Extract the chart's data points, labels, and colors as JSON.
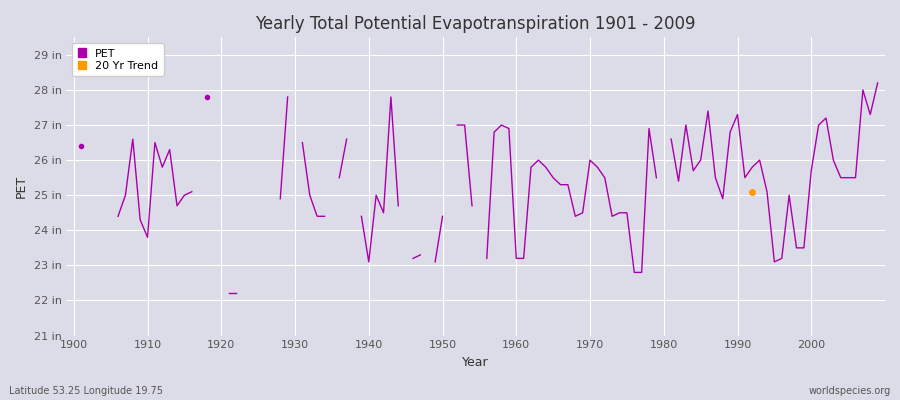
{
  "title": "Yearly Total Potential Evapotranspiration 1901 - 2009",
  "xlabel": "Year",
  "ylabel": "PET",
  "subtitle_left": "Latitude 53.25 Longitude 19.75",
  "subtitle_right": "worldspecies.org",
  "ylim": [
    21,
    29.5
  ],
  "yticks": [
    21,
    22,
    23,
    24,
    25,
    26,
    27,
    28,
    29
  ],
  "ytick_labels": [
    "21 in",
    "22 in",
    "23 in",
    "24 in",
    "25 in",
    "26 in",
    "27 in",
    "28 in",
    "29 in"
  ],
  "xlim": [
    1899,
    2010
  ],
  "xticks": [
    1900,
    1910,
    1920,
    1930,
    1940,
    1950,
    1960,
    1970,
    1980,
    1990,
    2000
  ],
  "background_color": "#dcdce8",
  "plot_bg_color": "#dcdce8",
  "grid_color": "#ffffff",
  "pet_color": "#aa00aa",
  "trend_color": "#ff9900",
  "pet_years": [
    1901,
    1906,
    1907,
    1908,
    1909,
    1910,
    1911,
    1912,
    1913,
    1914,
    1915,
    1916,
    1918,
    1921,
    1922,
    1928,
    1929,
    1931,
    1932,
    1933,
    1934,
    1936,
    1937,
    1939,
    1940,
    1941,
    1942,
    1943,
    1944,
    1946,
    1947,
    1949,
    1950,
    1952,
    1953,
    1954,
    1956,
    1957,
    1958,
    1959,
    1960,
    1961,
    1962,
    1963,
    1964,
    1965,
    1966,
    1967,
    1968,
    1969,
    1970,
    1971,
    1972,
    1973,
    1974,
    1975,
    1976,
    1977,
    1978,
    1979,
    1981,
    1982,
    1983,
    1984,
    1985,
    1986,
    1987,
    1988,
    1989,
    1990,
    1991,
    1992,
    1993,
    1994,
    1995,
    1996,
    1997,
    1998,
    1999,
    2000,
    2001,
    2002,
    2003,
    2004,
    2005,
    2006,
    2007,
    2008,
    2009
  ],
  "pet_values": [
    26.4,
    24.4,
    25.0,
    26.6,
    24.3,
    23.8,
    26.5,
    25.8,
    26.3,
    24.7,
    25.0,
    25.1,
    27.8,
    22.2,
    22.2,
    24.9,
    27.8,
    26.5,
    25.0,
    24.4,
    24.4,
    25.5,
    26.6,
    24.4,
    23.1,
    25.0,
    24.5,
    27.8,
    24.7,
    23.2,
    23.3,
    23.1,
    24.4,
    27.0,
    27.0,
    24.7,
    23.2,
    26.8,
    27.0,
    26.9,
    23.2,
    23.2,
    25.8,
    26.0,
    25.8,
    25.5,
    25.3,
    25.3,
    24.4,
    24.5,
    26.0,
    25.8,
    25.5,
    24.4,
    24.5,
    24.5,
    22.8,
    22.8,
    26.9,
    25.5,
    26.6,
    25.4,
    27.0,
    25.7,
    26.0,
    27.4,
    25.5,
    24.9,
    26.8,
    27.3,
    25.5,
    25.8,
    26.0,
    25.1,
    23.1,
    23.2,
    25.0,
    23.5,
    23.5,
    25.7,
    27.0,
    27.2,
    26.0,
    25.5,
    25.5,
    25.5,
    28.0,
    27.3,
    28.2
  ],
  "trend_year": 1992,
  "trend_value": 25.1,
  "segments": [
    [
      1901
    ],
    [
      1906,
      1907,
      1908,
      1909,
      1910,
      1911,
      1912,
      1913,
      1914,
      1915,
      1916
    ],
    [
      1918
    ],
    [
      1921,
      1922
    ],
    [
      1928,
      1929
    ],
    [
      1931,
      1932,
      1933,
      1934
    ],
    [
      1936,
      1937
    ],
    [
      1939,
      1940,
      1941,
      1942,
      1943,
      1944
    ],
    [
      1946,
      1947
    ],
    [
      1949,
      1950
    ],
    [
      1952,
      1953,
      1954
    ],
    [
      1956,
      1957,
      1958,
      1959,
      1960,
      1961,
      1962,
      1963,
      1964,
      1965,
      1966,
      1967,
      1968,
      1969,
      1970,
      1971,
      1972,
      1973,
      1974,
      1975,
      1976,
      1977,
      1978,
      1979
    ],
    [
      1981,
      1982,
      1983,
      1984,
      1985,
      1986,
      1987,
      1988,
      1989,
      1990,
      1991,
      1992,
      1993,
      1994,
      1995,
      1996,
      1997,
      1998,
      1999,
      2000,
      2001,
      2002,
      2003,
      2004,
      2005,
      2006,
      2007,
      2008,
      2009
    ]
  ]
}
